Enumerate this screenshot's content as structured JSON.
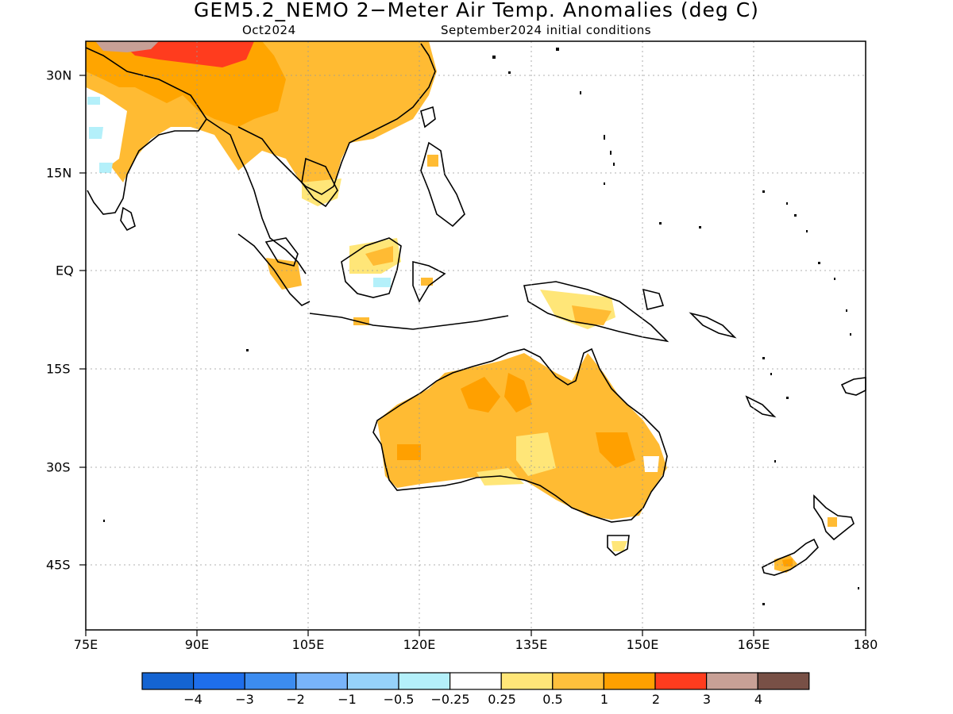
{
  "header": {
    "title": "GEM5.2_NEMO 2−Meter Air Temp. Anomalies (deg C)",
    "valid_month": "Oct2024",
    "init_conditions": "September2024 initial conditions"
  },
  "map": {
    "lon_range": [
      75,
      180
    ],
    "lat_range": [
      -55,
      35
    ],
    "lon_ticks": [
      {
        "value": 75,
        "label": "75E"
      },
      {
        "value": 90,
        "label": "90E"
      },
      {
        "value": 105,
        "label": "105E"
      },
      {
        "value": 120,
        "label": "120E"
      },
      {
        "value": 135,
        "label": "135E"
      },
      {
        "value": 150,
        "label": "150E"
      },
      {
        "value": 165,
        "label": "165E"
      },
      {
        "value": 180,
        "label": "180"
      }
    ],
    "lat_ticks": [
      {
        "value": 30,
        "label": "30N"
      },
      {
        "value": 15,
        "label": "15N"
      },
      {
        "value": 0,
        "label": "EQ"
      },
      {
        "value": -15,
        "label": "15S"
      },
      {
        "value": -30,
        "label": "30S"
      },
      {
        "value": -45,
        "label": "45S"
      }
    ],
    "grid": true,
    "anomaly_regions": [
      {
        "name": "australia-interior",
        "level": "1",
        "color": "#ffbb33"
      },
      {
        "name": "central-asia",
        "level": "1",
        "color": "#ffa500"
      },
      {
        "name": "tibet-warm",
        "level": "2",
        "color": "#ff3311"
      }
    ]
  },
  "colorbar": {
    "colors": [
      "#1464d2",
      "#1e6eeb",
      "#3c8cf0",
      "#78b4fa",
      "#96d2fa",
      "#b4f0fa",
      "#ffffff",
      "#ffe678",
      "#ffc03c",
      "#ffa000",
      "#ff3c1e",
      "#c8a096",
      "#785046"
    ],
    "labels": [
      "−4",
      "−3",
      "−2",
      "−1",
      "−0.5",
      "−0.25",
      "0.25",
      "0.5",
      "1",
      "2",
      "3",
      "4"
    ]
  }
}
